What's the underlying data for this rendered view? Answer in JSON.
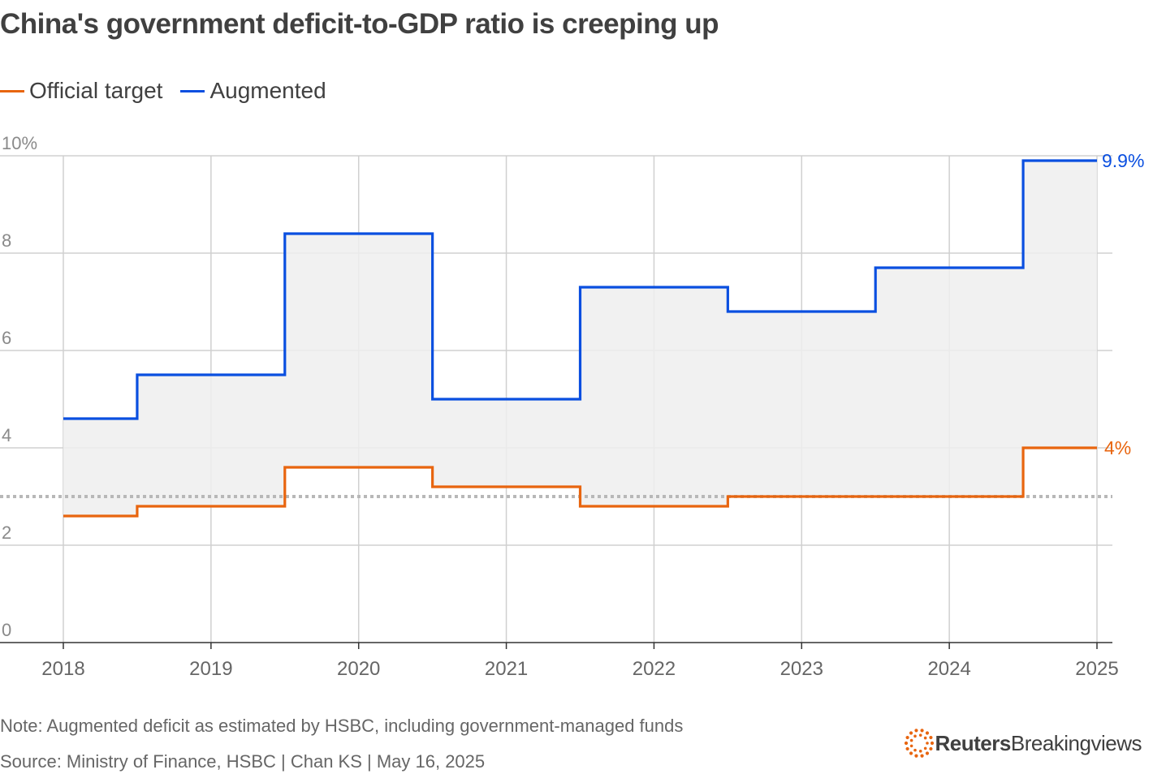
{
  "title": "China's government deficit-to-GDP ratio is creeping up",
  "note": "Note: Augmented deficit as estimated by HSBC, including government-managed funds",
  "source": "Source: Ministry of Finance, HSBC | Chan KS | May 16, 2025",
  "logo": {
    "brand": "Reuters",
    "product": "Breakingviews"
  },
  "colors": {
    "official": "#e8650f",
    "augmented": "#0a4fe0",
    "fill": "#efefef",
    "grid": "#d0d0d0",
    "axis": "#333333",
    "reference": "#b8b8b8",
    "logo_accent": "#e8650f"
  },
  "chart_data": {
    "type": "line",
    "step": true,
    "title": "China's government deficit-to-GDP ratio is creeping up",
    "x": [
      2018,
      2019,
      2020,
      2021,
      2022,
      2023,
      2024,
      2025
    ],
    "xticks": [
      "2018",
      "2019",
      "2020",
      "2021",
      "2022",
      "2023",
      "2024",
      "2025"
    ],
    "yticks": [
      "0",
      "2",
      "4",
      "6",
      "8",
      "10%"
    ],
    "ylim": [
      0,
      10
    ],
    "xlim": [
      2018,
      2025
    ],
    "grid": true,
    "reference_line": 3,
    "legend_position": "top-left",
    "series": [
      {
        "name": "Official target",
        "values": [
          2.6,
          2.8,
          3.6,
          3.2,
          2.8,
          3.0,
          3.0,
          4.0
        ],
        "end_label": "4%"
      },
      {
        "name": "Augmented",
        "values": [
          4.6,
          5.5,
          8.4,
          5.0,
          7.3,
          6.8,
          7.7,
          9.9
        ],
        "end_label": "9.9%"
      }
    ]
  }
}
